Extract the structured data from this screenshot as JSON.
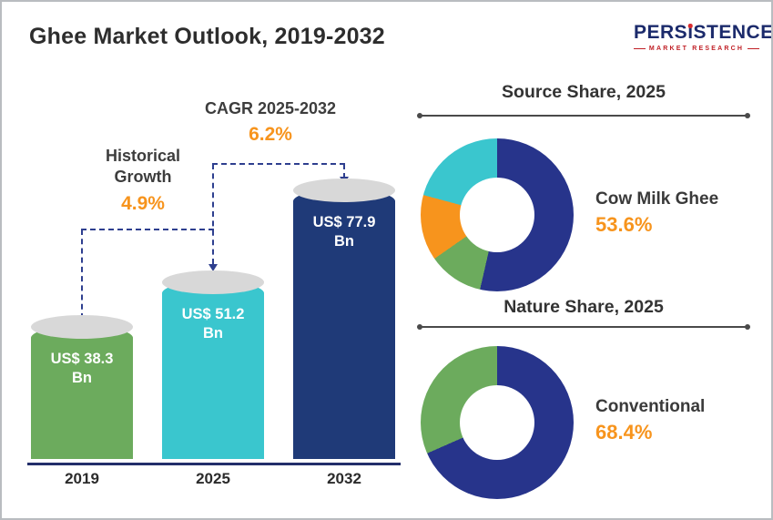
{
  "page": {
    "title": "Ghee Market Outlook, 2019-2032"
  },
  "logo": {
    "part1": "PERS",
    "part2": "i",
    "part3": "STENCE",
    "subtitle": "MARKET RESEARCH"
  },
  "chart_data": [
    {
      "type": "bar",
      "title": "Ghee Market Outlook, 2019-2032",
      "categories": [
        "2019",
        "2025",
        "2032"
      ],
      "values": [
        38.3,
        51.2,
        77.9
      ],
      "unit": "US$ Bn",
      "bar_labels": [
        "US$ 38.3 Bn",
        "US$ 51.2 Bn",
        "US$ 77.9 Bn"
      ],
      "colors": [
        "#6cab5d",
        "#3ac6ce",
        "#1f3a78"
      ],
      "ylim": [
        0,
        85
      ],
      "accent_color": "#f7941d",
      "annotations": [
        {
          "label": "Historical Growth",
          "value": "4.9%",
          "applies_to": "2019-2025"
        },
        {
          "label": "CAGR 2025-2032",
          "value": "6.2%",
          "applies_to": "2025-2032"
        }
      ]
    },
    {
      "type": "pie",
      "title": "Source Share, 2025",
      "segments": [
        {
          "name": "Cow Milk Ghee",
          "value": 53.6,
          "color": "#27348b"
        },
        {
          "name": "",
          "value": 11.7,
          "color": "#6cab5d"
        },
        {
          "name": "",
          "value": 13.9,
          "color": "#f7941d"
        },
        {
          "name": "",
          "value": 20.8,
          "color": "#3ac6ce"
        }
      ],
      "callout": {
        "label": "Cow Milk Ghee",
        "value": "53.6%"
      }
    },
    {
      "type": "pie",
      "title": "Nature Share, 2025",
      "segments": [
        {
          "name": "Conventional",
          "value": 68.4,
          "color": "#27348b"
        },
        {
          "name": "",
          "value": 31.6,
          "color": "#6cab5d"
        }
      ],
      "callout": {
        "label": "Conventional",
        "value": "68.4%"
      }
    }
  ]
}
